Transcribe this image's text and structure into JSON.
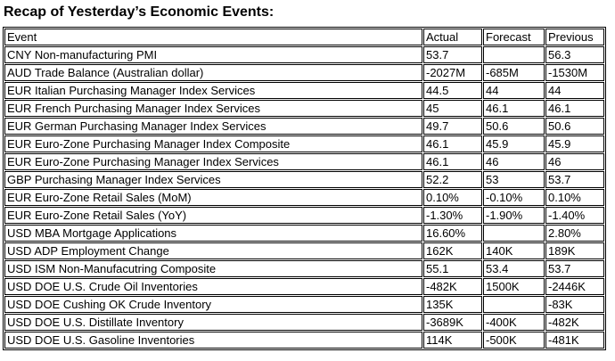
{
  "page_title": "Recap of Yesterday’s Economic Events:",
  "colors": {
    "text": "#000000",
    "background": "#ffffff",
    "table_border": "#000000"
  },
  "chart_data": {
    "type": "table",
    "title": "Recap of Yesterday’s Economic Events:",
    "columns": [
      "Event",
      "Actual",
      "Forecast",
      "Previous"
    ],
    "rows": [
      {
        "event": "CNY Non-manufacturing PMI",
        "actual": "53.7",
        "forecast": "",
        "previous": "56.3"
      },
      {
        "event": "AUD Trade Balance (Australian dollar)",
        "actual": "-2027M",
        "forecast": "-685M",
        "previous": "-1530M"
      },
      {
        "event": "EUR Italian Purchasing Manager Index Services",
        "actual": "44.5",
        "forecast": "44",
        "previous": "44"
      },
      {
        "event": "EUR French Purchasing Manager Index Services",
        "actual": "45",
        "forecast": "46.1",
        "previous": "46.1"
      },
      {
        "event": "EUR German Purchasing Manager Index Services",
        "actual": "49.7",
        "forecast": "50.6",
        "previous": "50.6"
      },
      {
        "event": "EUR Euro-Zone Purchasing Manager Index Composite",
        "actual": "46.1",
        "forecast": "45.9",
        "previous": "45.9"
      },
      {
        "event": "EUR Euro-Zone Purchasing Manager Index Services",
        "actual": "46.1",
        "forecast": "46",
        "previous": "46"
      },
      {
        "event": "GBP Purchasing Manager Index Services",
        "actual": "52.2",
        "forecast": "53",
        "previous": "53.7"
      },
      {
        "event": "EUR Euro-Zone Retail Sales (MoM)",
        "actual": "0.10%",
        "forecast": "-0.10%",
        "previous": "0.10%"
      },
      {
        "event": "EUR Euro-Zone Retail Sales (YoY)",
        "actual": "-1.30%",
        "forecast": "-1.90%",
        "previous": "-1.40%"
      },
      {
        "event": "USD MBA Mortgage Applications",
        "actual": "16.60%",
        "forecast": "",
        "previous": "2.80%"
      },
      {
        "event": "USD ADP Employment Change",
        "actual": "162K",
        "forecast": "140K",
        "previous": "189K"
      },
      {
        "event": "USD ISM Non-Manufacutring Composite",
        "actual": "55.1",
        "forecast": "53.4",
        "previous": "53.7"
      },
      {
        "event": "USD DOE U.S. Crude Oil Inventories",
        "actual": "-482K",
        "forecast": "1500K",
        "previous": "-2446K"
      },
      {
        "event": "USD DOE Cushing OK Crude Inventory",
        "actual": "135K",
        "forecast": "",
        "previous": "-83K"
      },
      {
        "event": "USD DOE U.S. Distillate Inventory",
        "actual": "-3689K",
        "forecast": "-400K",
        "previous": "-482K"
      },
      {
        "event": "USD DOE U.S. Gasoline Inventories",
        "actual": "114K",
        "forecast": "-500K",
        "previous": "-481K"
      }
    ]
  }
}
